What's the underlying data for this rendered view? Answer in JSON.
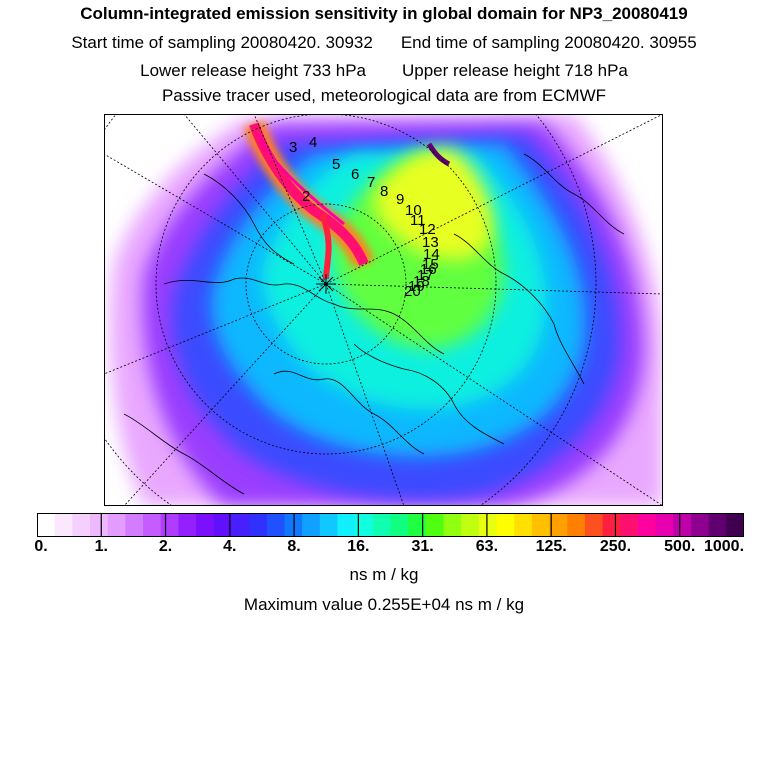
{
  "header": {
    "title": "Column-integrated emission sensitivity in global domain for NP3_20080419",
    "start_label": "Start time of sampling 20080420. 30932",
    "end_label": "End time of sampling 20080420. 30955",
    "lower_label": "Lower release height  733 hPa",
    "upper_label": "Upper release height  718 hPa",
    "tracer_note": "Passive tracer used, meteorological data are from ECMWF"
  },
  "map": {
    "markers": [
      "2",
      "3",
      "4",
      "5",
      "6",
      "7",
      "8",
      "9",
      "10",
      "11",
      "12",
      "13",
      "14",
      "15",
      "16",
      "17",
      "18",
      "19",
      "20"
    ]
  },
  "colorbar": {
    "colors": [
      "#ffffff",
      "#fbe8ff",
      "#f5d0ff",
      "#eeb8ff",
      "#e39cff",
      "#d47cff",
      "#c45cff",
      "#b03cff",
      "#9420ff",
      "#7a10ff",
      "#6010ff",
      "#4820ff",
      "#3030ff",
      "#2050ff",
      "#1078ff",
      "#10a0ff",
      "#10c8ff",
      "#10f0ff",
      "#10ffe0",
      "#10ffb0",
      "#10ff80",
      "#20ff40",
      "#50ff10",
      "#90ff10",
      "#c0ff10",
      "#e8ff10",
      "#ffff00",
      "#ffe000",
      "#ffc000",
      "#ffa000",
      "#ff8000",
      "#ff5020",
      "#ff2040",
      "#ff1070",
      "#ff00a0",
      "#e800b0",
      "#c000a8",
      "#900090",
      "#600070",
      "#400050"
    ],
    "tick_labels": [
      "0.",
      "1.",
      "2.",
      "4.",
      "8.",
      "16.",
      "31.",
      "63.",
      "125.",
      "250.",
      "500.",
      "1000."
    ],
    "unit": "ns m / kg"
  },
  "footer": {
    "max_value": "Maximum value  0.255E+04 ns m / kg"
  }
}
